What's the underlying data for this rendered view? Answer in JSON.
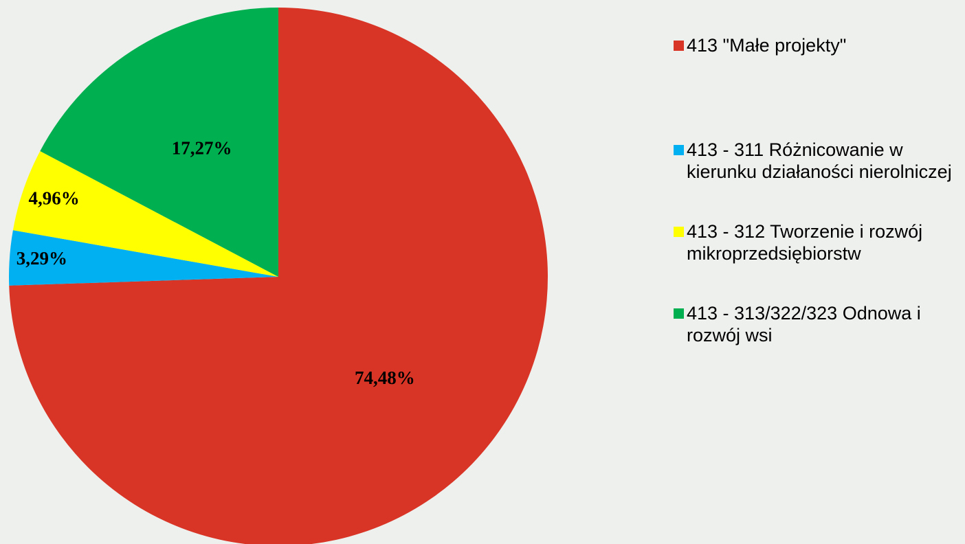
{
  "chart_data": {
    "type": "pie",
    "categories": [
      "413 \"Małe projekty\"",
      "413 - 311 Różnicowanie w kierunku działaności nierolniczej",
      "413 - 312 Tworzenie i rozwój mikroprzedsiębiorstw",
      "413 - 313/322/323 Odnowa i rozwój wsi"
    ],
    "values": [
      74.48,
      3.29,
      4.96,
      17.27
    ],
    "value_labels": [
      "74,48%",
      "3,29%",
      "4,96%",
      "17,27%"
    ],
    "colors": [
      "#d93526",
      "#00b0f0",
      "#ffff00",
      "#00b050"
    ],
    "legend": "right"
  }
}
